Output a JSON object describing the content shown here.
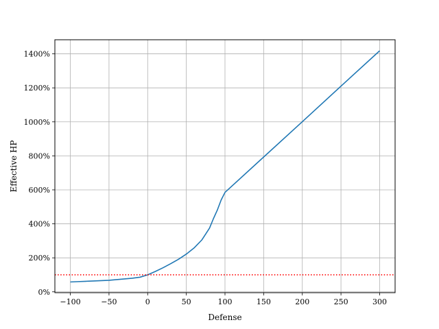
{
  "chart_data": {
    "type": "line",
    "title": "",
    "xlabel": "Defense",
    "ylabel": "Effective HP",
    "xlim": [
      -120,
      320
    ],
    "ylim": [
      -5,
      1483
    ],
    "grid": true,
    "xticks": [
      -100,
      -50,
      0,
      50,
      100,
      150,
      200,
      250,
      300
    ],
    "xtick_labels": [
      "−100",
      "−50",
      "0",
      "50",
      "100",
      "150",
      "200",
      "250",
      "300"
    ],
    "yticks": [
      0,
      200,
      400,
      600,
      800,
      1000,
      1200,
      1400
    ],
    "ytick_labels": [
      "0%",
      "200%",
      "400%",
      "600%",
      "800%",
      "1000%",
      "1200%",
      "1400%"
    ],
    "series": [
      {
        "color": "#1f77b4",
        "style": "solid",
        "x": [
          -100,
          -90,
          -80,
          -70,
          -60,
          -50,
          -40,
          -30,
          -20,
          -10,
          0,
          10,
          20,
          30,
          40,
          50,
          60,
          70,
          80,
          85,
          90,
          95,
          100,
          150,
          200,
          250,
          300
        ],
        "y": [
          58,
          60,
          62,
          64,
          66,
          68,
          72,
          76,
          80,
          86,
          100,
          120,
          142,
          166,
          192,
          222,
          258,
          305,
          375,
          430,
          480,
          540,
          585,
          793,
          1001,
          1210,
          1418
        ]
      },
      {
        "color": "#ff0000",
        "style": "dotted",
        "x": [
          -120,
          320
        ],
        "y": [
          100,
          100
        ]
      }
    ]
  }
}
